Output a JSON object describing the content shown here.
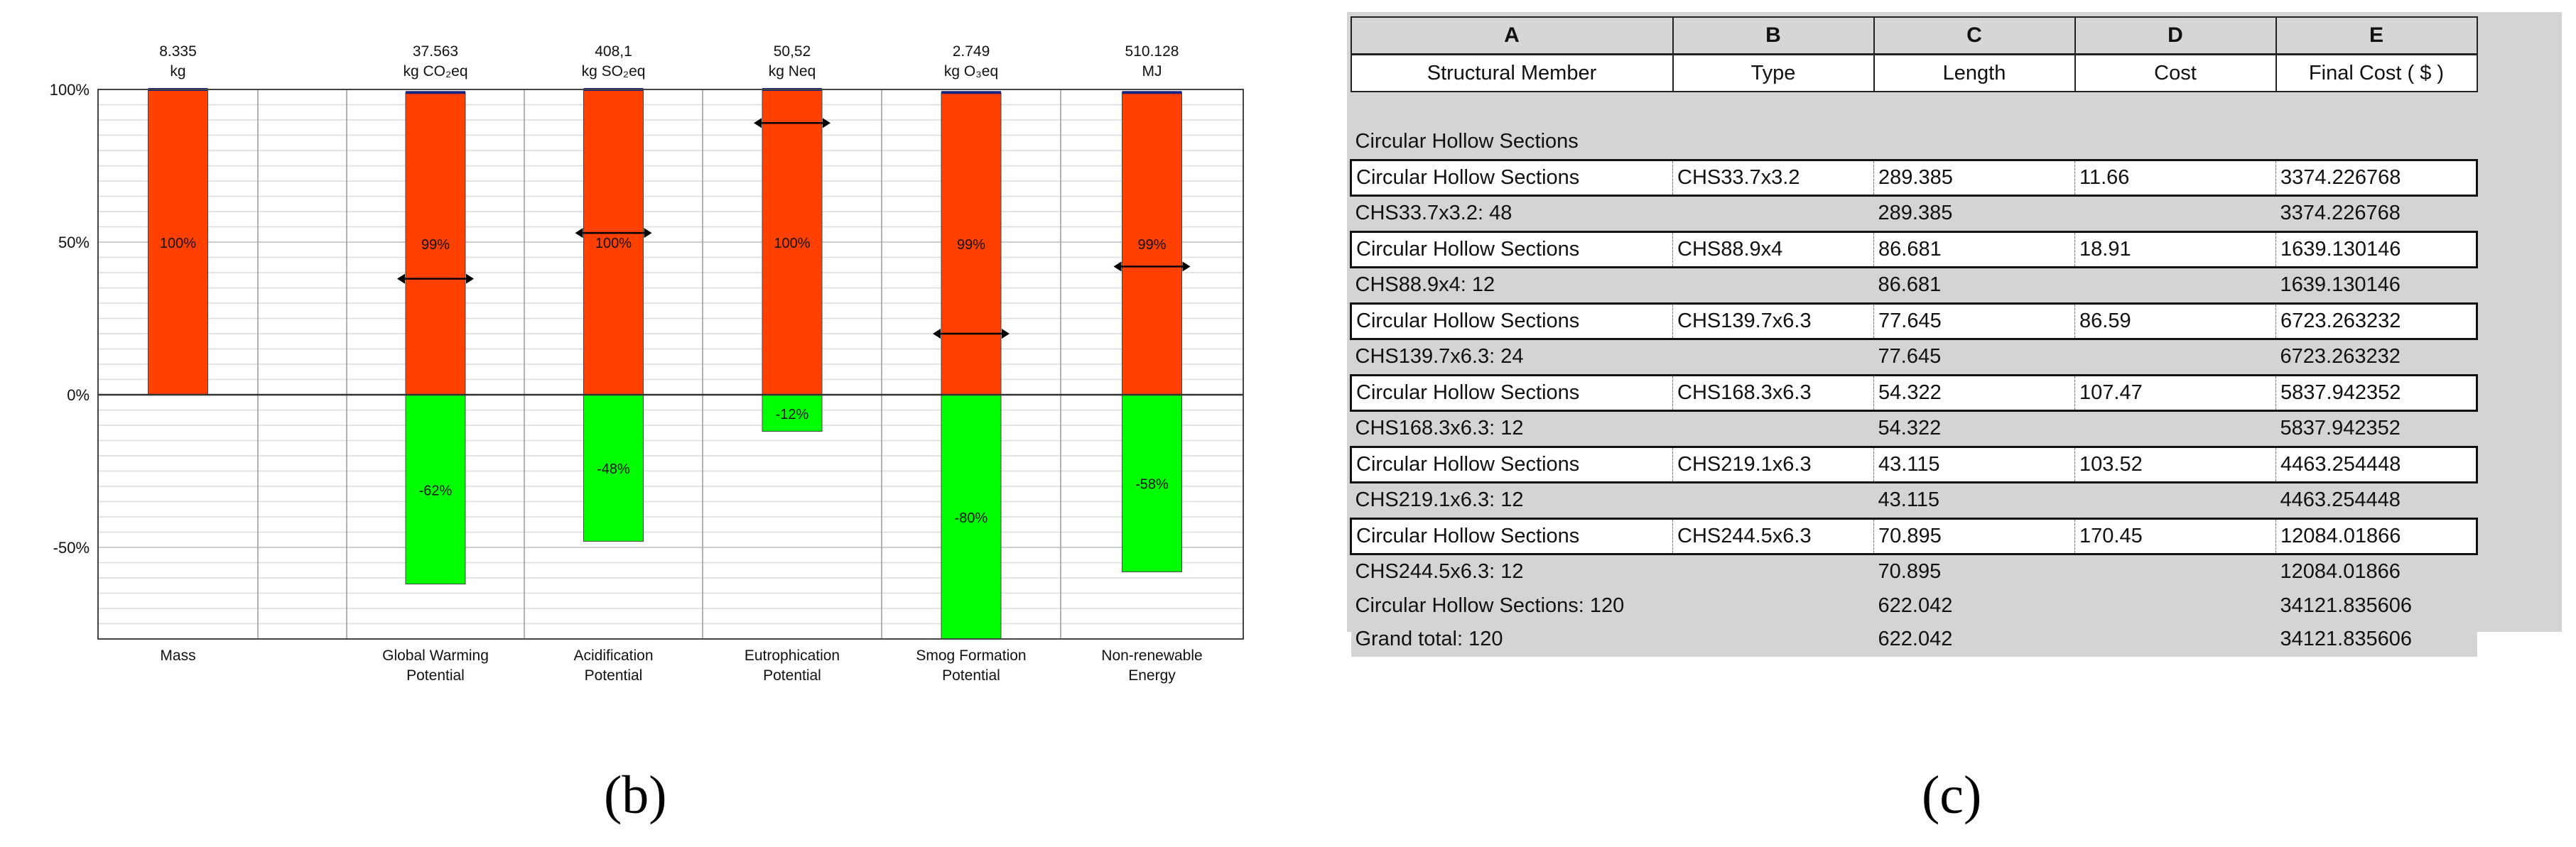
{
  "chart_data": {
    "type": "bar",
    "stacked": true,
    "categories": [
      "Mass",
      "Global Warming Potential",
      "Acidification Potential",
      "Eutrophication Potential",
      "Smog Formation Potential",
      "Non-renewable Energy"
    ],
    "category_lines": [
      [
        "Mass"
      ],
      [
        "Global Warming",
        "Potential"
      ],
      [
        "Acidification",
        "Potential"
      ],
      [
        "Eutrophication",
        "Potential"
      ],
      [
        "Smog Formation",
        "Potential"
      ],
      [
        "Non-renewable",
        "Energy"
      ]
    ],
    "totals": [
      [
        "8.335",
        "kg"
      ],
      [
        "37.563",
        "kg CO₂eq"
      ],
      [
        "408,1",
        "kg SO₂eq"
      ],
      [
        "50,52",
        "kg Neq"
      ],
      [
        "2.749",
        "kg O₃eq"
      ],
      [
        "510.128",
        "MJ"
      ]
    ],
    "series": [
      {
        "color": "#ff4000",
        "values": [
          100,
          99,
          100,
          100,
          99,
          99
        ],
        "labels": [
          "100%",
          "99%",
          "100%",
          "100%",
          "99%",
          "99%"
        ]
      },
      {
        "color": "#00ff00",
        "values": [
          null,
          -62,
          -48,
          -12,
          -80,
          -58
        ],
        "labels": [
          "",
          "-62%",
          "-48%",
          "-12%",
          "-80%",
          "-58%"
        ]
      }
    ],
    "net_markers": [
      null,
      38,
      53,
      89,
      20,
      42
    ],
    "ylim": [
      -80,
      100
    ],
    "yticks": [
      100,
      50,
      0,
      -50
    ],
    "ytick_labels": [
      "100%",
      "50%",
      "0%",
      "-50%"
    ],
    "grid": true
  },
  "panel_labels": {
    "b": "(b)",
    "c": "(c)"
  },
  "table": {
    "column_letters": [
      "A",
      "B",
      "C",
      "D",
      "E"
    ],
    "column_titles": [
      "Structural Member",
      "Type",
      "Length",
      "Cost",
      "Final Cost ( $ )"
    ],
    "rows": [
      {
        "kind": "group-header",
        "cells": [
          "Circular Hollow Sections",
          "",
          "",
          "",
          ""
        ]
      },
      {
        "kind": "item",
        "cells": [
          "Circular Hollow Sections",
          "CHS33.7x3.2",
          "289.385",
          "11.66",
          "3374.226768"
        ]
      },
      {
        "kind": "summary",
        "cells": [
          "CHS33.7x3.2: 48",
          "",
          "289.385",
          "",
          "3374.226768"
        ]
      },
      {
        "kind": "item",
        "cells": [
          "Circular Hollow Sections",
          "CHS88.9x4",
          "86.681",
          "18.91",
          "1639.130146"
        ]
      },
      {
        "kind": "summary",
        "cells": [
          "CHS88.9x4: 12",
          "",
          "86.681",
          "",
          "1639.130146"
        ]
      },
      {
        "kind": "item",
        "cells": [
          "Circular Hollow Sections",
          "CHS139.7x6.3",
          "77.645",
          "86.59",
          "6723.263232"
        ]
      },
      {
        "kind": "summary",
        "cells": [
          "CHS139.7x6.3: 24",
          "",
          "77.645",
          "",
          "6723.263232"
        ]
      },
      {
        "kind": "item",
        "cells": [
          "Circular Hollow Sections",
          "CHS168.3x6.3",
          "54.322",
          "107.47",
          "5837.942352"
        ]
      },
      {
        "kind": "summary",
        "cells": [
          "CHS168.3x6.3: 12",
          "",
          "54.322",
          "",
          "5837.942352"
        ]
      },
      {
        "kind": "item",
        "cells": [
          "Circular Hollow Sections",
          "CHS219.1x6.3",
          "43.115",
          "103.52",
          "4463.254448"
        ]
      },
      {
        "kind": "summary",
        "cells": [
          "CHS219.1x6.3: 12",
          "",
          "43.115",
          "",
          "4463.254448"
        ]
      },
      {
        "kind": "item",
        "cells": [
          "Circular Hollow Sections",
          "CHS244.5x6.3",
          "70.895",
          "170.45",
          "12084.01866"
        ]
      },
      {
        "kind": "summary",
        "cells": [
          "CHS244.5x6.3: 12",
          "",
          "70.895",
          "",
          "12084.01866"
        ]
      },
      {
        "kind": "summary",
        "cells": [
          "Circular Hollow Sections: 120",
          "",
          "622.042",
          "",
          "34121.835606"
        ]
      },
      {
        "kind": "summary",
        "cells": [
          "Grand total: 120",
          "",
          "622.042",
          "",
          "34121.835606"
        ]
      }
    ]
  }
}
